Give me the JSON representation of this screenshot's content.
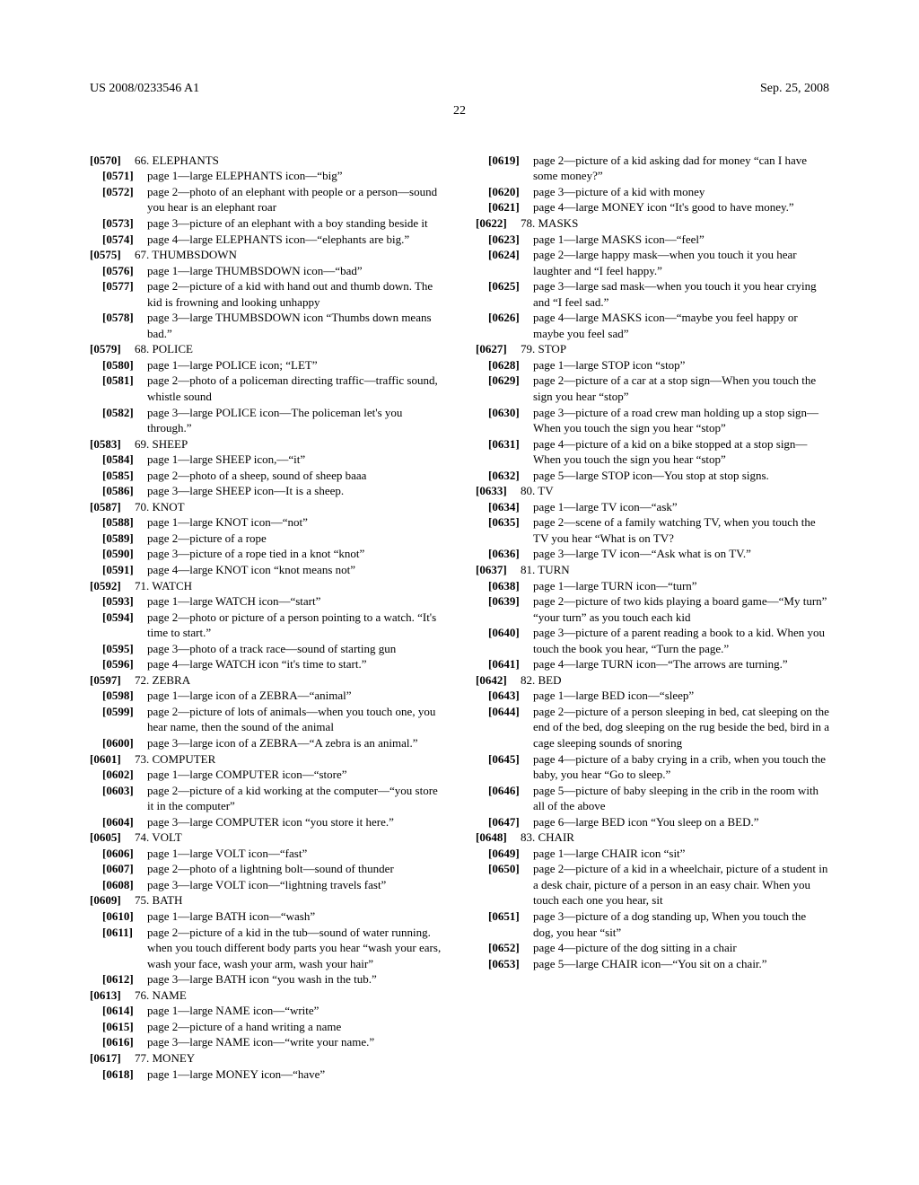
{
  "header": {
    "left": "US 2008/0233546 A1",
    "right": "Sep. 25, 2008",
    "page": "22"
  },
  "entries": [
    {
      "n": "[0570]",
      "ind": 0,
      "t": "66. ELEPHANTS"
    },
    {
      "n": "[0571]",
      "ind": 1,
      "t": "page 1—large ELEPHANTS icon—“big”"
    },
    {
      "n": "[0572]",
      "ind": 1,
      "t": "page 2—photo of an elephant with people or a person—sound you hear is an elephant roar"
    },
    {
      "n": "[0573]",
      "ind": 1,
      "t": "page 3—picture of an elephant with a boy standing beside it"
    },
    {
      "n": "[0574]",
      "ind": 1,
      "t": "page 4—large ELEPHANTS icon—“elephants are big.”"
    },
    {
      "n": "[0575]",
      "ind": 0,
      "t": "67. THUMBSDOWN"
    },
    {
      "n": "[0576]",
      "ind": 1,
      "t": "page 1—large THUMBSDOWN icon—“bad”"
    },
    {
      "n": "[0577]",
      "ind": 1,
      "t": "page 2—picture of a kid with hand out and thumb down. The kid is frowning and looking unhappy"
    },
    {
      "n": "[0578]",
      "ind": 1,
      "t": "page 3—large THUMBSDOWN icon “Thumbs down means bad.”"
    },
    {
      "n": "[0579]",
      "ind": 0,
      "t": "68. POLICE"
    },
    {
      "n": "[0580]",
      "ind": 1,
      "t": "page 1—large POLICE icon; “LET”"
    },
    {
      "n": "[0581]",
      "ind": 1,
      "t": "page 2—photo of a policeman directing traffic—traffic sound, whistle sound"
    },
    {
      "n": "[0582]",
      "ind": 1,
      "t": "page 3—large POLICE icon—The policeman let's you through.”"
    },
    {
      "n": "[0583]",
      "ind": 0,
      "t": "69. SHEEP"
    },
    {
      "n": "[0584]",
      "ind": 1,
      "t": "page 1—large SHEEP icon,—“it”"
    },
    {
      "n": "[0585]",
      "ind": 1,
      "t": "page 2—photo of a sheep, sound of sheep baaa"
    },
    {
      "n": "[0586]",
      "ind": 1,
      "t": "page 3—large SHEEP icon—It is a sheep."
    },
    {
      "n": "[0587]",
      "ind": 0,
      "t": "70. KNOT"
    },
    {
      "n": "[0588]",
      "ind": 1,
      "t": "page 1—large KNOT icon—“not”"
    },
    {
      "n": "[0589]",
      "ind": 1,
      "t": "page 2—picture of a rope"
    },
    {
      "n": "[0590]",
      "ind": 1,
      "t": "page 3—picture of a rope tied in a knot “knot”"
    },
    {
      "n": "[0591]",
      "ind": 1,
      "t": "page 4—large KNOT icon “knot means not”"
    },
    {
      "n": "[0592]",
      "ind": 0,
      "t": "71. WATCH"
    },
    {
      "n": "[0593]",
      "ind": 1,
      "t": "page 1—large WATCH icon—“start”"
    },
    {
      "n": "[0594]",
      "ind": 1,
      "t": "page 2—photo or picture of a person pointing to a watch. “It's time to start.”"
    },
    {
      "n": "[0595]",
      "ind": 1,
      "t": "page 3—photo of a track race—sound of starting gun"
    },
    {
      "n": "[0596]",
      "ind": 1,
      "t": "page 4—large WATCH icon “it's time to start.”"
    },
    {
      "n": "[0597]",
      "ind": 0,
      "t": "72. ZEBRA"
    },
    {
      "n": "[0598]",
      "ind": 1,
      "t": "page 1—large icon of a ZEBRA—“animal”"
    },
    {
      "n": "[0599]",
      "ind": 1,
      "t": "page 2—picture of lots of animals—when you touch one, you hear name, then the sound of the animal"
    },
    {
      "n": "[0600]",
      "ind": 1,
      "t": "page 3—large icon of a ZEBRA—“A zebra is an animal.”"
    },
    {
      "n": "[0601]",
      "ind": 0,
      "t": "73. COMPUTER"
    },
    {
      "n": "[0602]",
      "ind": 1,
      "t": "page 1—large COMPUTER icon—“store”"
    },
    {
      "n": "[0603]",
      "ind": 1,
      "t": "page 2—picture of a kid working at the computer—“you store it in the computer”"
    },
    {
      "n": "[0604]",
      "ind": 1,
      "t": "page 3—large COMPUTER icon “you store it here.”"
    },
    {
      "n": "[0605]",
      "ind": 0,
      "t": "74. VOLT"
    },
    {
      "n": "[0606]",
      "ind": 1,
      "t": "page 1—large VOLT icon—“fast”"
    },
    {
      "n": "[0607]",
      "ind": 1,
      "t": "page 2—photo of a lightning bolt—sound of thunder"
    },
    {
      "n": "[0608]",
      "ind": 1,
      "t": "page 3—large VOLT icon—“lightning travels fast”"
    },
    {
      "n": "[0609]",
      "ind": 0,
      "t": "75. BATH"
    },
    {
      "n": "[0610]",
      "ind": 1,
      "t": "page 1—large BATH icon—“wash”"
    },
    {
      "n": "[0611]",
      "ind": 1,
      "t": "page 2—picture of a kid in the tub—sound of water running. when you touch different body parts you hear “wash your ears, wash your face, wash your arm, wash your hair”"
    },
    {
      "n": "[0612]",
      "ind": 1,
      "t": "page 3—large BATH icon “you wash in the tub.”"
    },
    {
      "n": "[0613]",
      "ind": 0,
      "t": "76. NAME"
    },
    {
      "n": "[0614]",
      "ind": 1,
      "t": "page 1—large NAME icon—“write”"
    },
    {
      "n": "[0615]",
      "ind": 1,
      "t": "page 2—picture of a hand writing a name"
    },
    {
      "n": "[0616]",
      "ind": 1,
      "t": "page 3—large NAME icon—“write your name.”"
    },
    {
      "n": "[0617]",
      "ind": 0,
      "t": "77. MONEY"
    },
    {
      "n": "[0618]",
      "ind": 1,
      "t": "page 1—large MONEY icon—“have”"
    },
    {
      "n": "[0619]",
      "ind": 1,
      "t": "page 2—picture of a kid asking dad for money “can I have some money?”"
    },
    {
      "n": "[0620]",
      "ind": 1,
      "t": "page 3—picture of a kid with money"
    },
    {
      "n": "[0621]",
      "ind": 1,
      "t": "page 4—large MONEY icon “It's good to have money.”"
    },
    {
      "n": "[0622]",
      "ind": 0,
      "t": "78. MASKS"
    },
    {
      "n": "[0623]",
      "ind": 1,
      "t": "page 1—large MASKS icon—“feel”"
    },
    {
      "n": "[0624]",
      "ind": 1,
      "t": "page 2—large happy mask—when you touch it you hear laughter and “I feel happy.”"
    },
    {
      "n": "[0625]",
      "ind": 1,
      "t": "page 3—large sad mask—when you touch it you hear crying and “I feel sad.”"
    },
    {
      "n": "[0626]",
      "ind": 1,
      "t": "page 4—large MASKS icon—“maybe you feel happy or maybe you feel sad”"
    },
    {
      "n": "[0627]",
      "ind": 0,
      "t": "79. STOP"
    },
    {
      "n": "[0628]",
      "ind": 1,
      "t": "page 1—large STOP icon “stop”"
    },
    {
      "n": "[0629]",
      "ind": 1,
      "t": "page 2—picture of a car at a stop sign—When you touch the sign you hear “stop”"
    },
    {
      "n": "[0630]",
      "ind": 1,
      "t": "page 3—picture of a road crew man holding up a stop sign—When you touch the sign you hear “stop”"
    },
    {
      "n": "[0631]",
      "ind": 1,
      "t": "page 4—picture of a kid on a bike stopped at a stop sign—When you touch the sign you hear “stop”"
    },
    {
      "n": "[0632]",
      "ind": 1,
      "t": "page 5—large STOP icon—You stop at stop signs."
    },
    {
      "n": "[0633]",
      "ind": 0,
      "t": "80. TV"
    },
    {
      "n": "[0634]",
      "ind": 1,
      "t": "page 1—large TV icon—“ask”"
    },
    {
      "n": "[0635]",
      "ind": 1,
      "t": "page 2—scene of a family watching TV, when you touch the TV you hear “What is on TV?"
    },
    {
      "n": "[0636]",
      "ind": 1,
      "t": "page 3—large TV icon—“Ask what is on TV.”"
    },
    {
      "n": "[0637]",
      "ind": 0,
      "t": "81. TURN"
    },
    {
      "n": "[0638]",
      "ind": 1,
      "t": "page 1—large TURN icon—“turn”"
    },
    {
      "n": "[0639]",
      "ind": 1,
      "t": "page 2—picture of two kids playing a board game—“My turn” “your turn” as you touch each kid"
    },
    {
      "n": "[0640]",
      "ind": 1,
      "t": "page 3—picture of a parent reading a book to a kid. When you touch the book you hear, “Turn the page.”"
    },
    {
      "n": "[0641]",
      "ind": 1,
      "t": "page 4—large TURN icon—“The arrows are turning.”"
    },
    {
      "n": "[0642]",
      "ind": 0,
      "t": "82. BED"
    },
    {
      "n": "[0643]",
      "ind": 1,
      "t": "page 1—large BED icon—“sleep”"
    },
    {
      "n": "[0644]",
      "ind": 1,
      "t": "page 2—picture of a person sleeping in bed, cat sleeping on the end of the bed, dog sleeping on the rug beside the bed, bird in a cage sleeping sounds of snoring"
    },
    {
      "n": "[0645]",
      "ind": 1,
      "t": "page 4—picture of a baby crying in a crib, when you touch the baby, you hear “Go to sleep.”"
    },
    {
      "n": "[0646]",
      "ind": 1,
      "t": "page 5—picture of baby sleeping in the crib in the room with all of the above"
    },
    {
      "n": "[0647]",
      "ind": 1,
      "t": "page 6—large BED icon “You sleep on a BED.”"
    },
    {
      "n": "[0648]",
      "ind": 0,
      "t": "83. CHAIR"
    },
    {
      "n": "[0649]",
      "ind": 1,
      "t": "page 1—large CHAIR icon “sit”"
    },
    {
      "n": "[0650]",
      "ind": 1,
      "t": "page 2—picture of a kid in a wheelchair, picture of a student in a desk chair, picture of a person in an easy chair. When you touch each one you hear, sit"
    },
    {
      "n": "[0651]",
      "ind": 1,
      "t": "page 3—picture of a dog standing up, When you touch the dog, you hear “sit”"
    },
    {
      "n": "[0652]",
      "ind": 1,
      "t": "page 4—picture of the dog sitting in a chair"
    },
    {
      "n": "[0653]",
      "ind": 1,
      "t": "page 5—large CHAIR icon—“You sit on a chair.”"
    }
  ]
}
